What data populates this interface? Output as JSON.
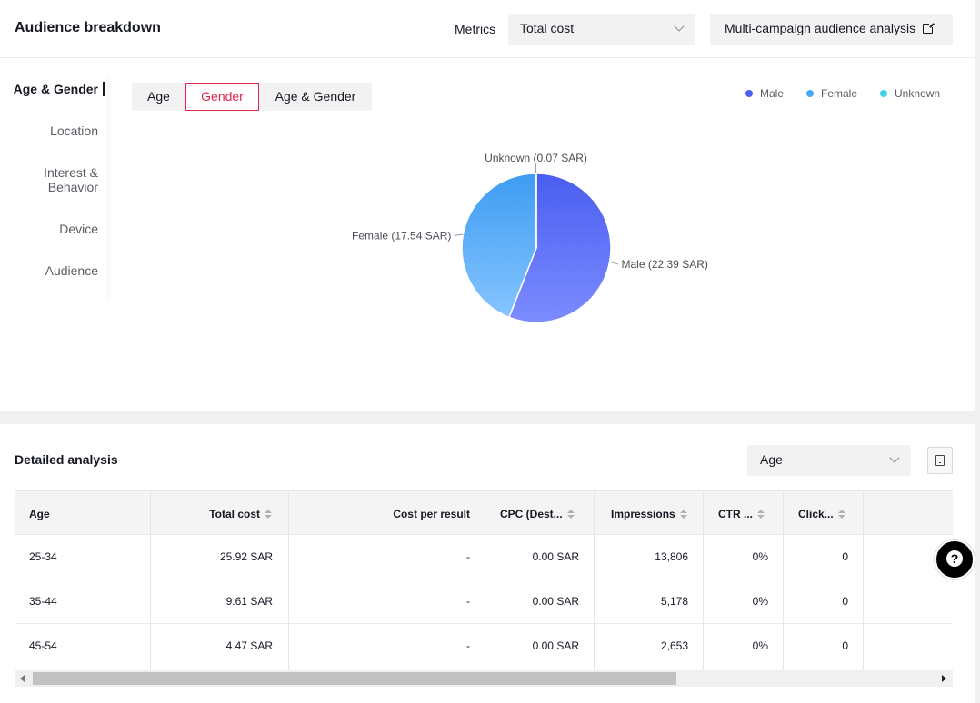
{
  "header": {
    "title": "Audience breakdown",
    "metrics_label": "Metrics",
    "metrics_value": "Total cost",
    "analysis_button": "Multi-campaign audience analysis"
  },
  "sidenav": {
    "items": [
      {
        "label": "Age & Gender",
        "active": true
      },
      {
        "label": "Location"
      },
      {
        "label": "Interest &",
        "label2": "Behavior"
      },
      {
        "label": "Device"
      },
      {
        "label": "Audience"
      }
    ]
  },
  "segments": [
    "Age",
    "Gender",
    "Age & Gender"
  ],
  "active_segment": "Gender",
  "legend": [
    {
      "name": "Male",
      "color": "#4a5ef0"
    },
    {
      "name": "Female",
      "color": "#4aa8f5"
    },
    {
      "name": "Unknown",
      "color": "#3fd3e8"
    }
  ],
  "chart_data": {
    "type": "pie",
    "slices": [
      {
        "name": "Male",
        "value": 22.39,
        "label": "Male (22.39 SAR)"
      },
      {
        "name": "Female",
        "value": 17.54,
        "label": "Female (17.54 SAR)"
      },
      {
        "name": "Unknown",
        "value": 0.07,
        "label": "Unknown (0.07 SAR)"
      }
    ]
  },
  "detail": {
    "title": "Detailed analysis",
    "dimension_value": "Age",
    "columns": [
      "Age",
      "Total cost",
      "Cost per result",
      "CPC (Dest...",
      "Impressions",
      "CTR ...",
      "Click..."
    ],
    "rows": [
      [
        "25-34",
        "25.92 SAR",
        "-",
        "0.00 SAR",
        "13,806",
        "0%",
        "0"
      ],
      [
        "35-44",
        "9.61 SAR",
        "-",
        "0.00 SAR",
        "5,178",
        "0%",
        "0"
      ],
      [
        "45-54",
        "4.47 SAR",
        "-",
        "0.00 SAR",
        "2,653",
        "0%",
        "0"
      ]
    ]
  }
}
